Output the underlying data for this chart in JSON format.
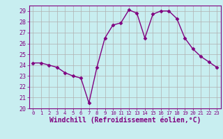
{
  "x": [
    0,
    1,
    2,
    3,
    4,
    5,
    6,
    7,
    8,
    9,
    10,
    11,
    12,
    13,
    14,
    15,
    16,
    17,
    18,
    19,
    20,
    21,
    22,
    23
  ],
  "y": [
    24.2,
    24.2,
    24.0,
    23.8,
    23.3,
    23.0,
    22.8,
    20.5,
    23.8,
    26.5,
    27.7,
    27.9,
    29.1,
    28.8,
    26.5,
    28.7,
    29.0,
    29.0,
    28.3,
    26.5,
    25.5,
    24.8,
    24.3,
    23.8
  ],
  "line_color": "#800080",
  "marker": "D",
  "marker_size": 2.5,
  "background_color": "#c8eef0",
  "grid_color": "#b0b0b0",
  "xlabel": "Windchill (Refroidissement éolien,°C)",
  "xlabel_color": "#800080",
  "xlim": [
    -0.5,
    23.5
  ],
  "ylim": [
    20,
    29.5
  ],
  "yticks": [
    20,
    21,
    22,
    23,
    24,
    25,
    26,
    27,
    28,
    29
  ],
  "xticks": [
    0,
    1,
    2,
    3,
    4,
    5,
    6,
    7,
    8,
    9,
    10,
    11,
    12,
    13,
    14,
    15,
    16,
    17,
    18,
    19,
    20,
    21,
    22,
    23
  ],
  "tick_color": "#800080",
  "ytick_fontsize": 6.0,
  "xtick_fontsize": 5.2,
  "xlabel_fontsize": 7.0,
  "spine_color": "#800080",
  "linewidth": 1.0
}
